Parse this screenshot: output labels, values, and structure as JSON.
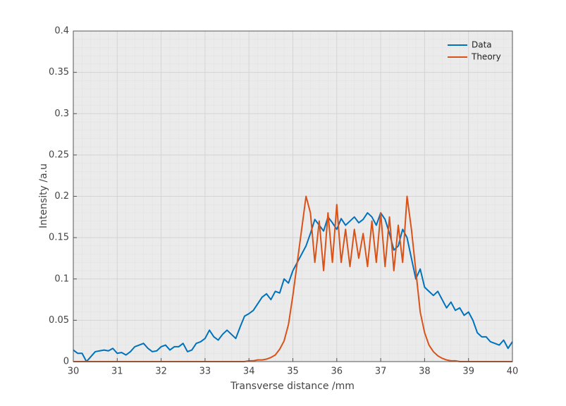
{
  "chart_data": {
    "type": "line",
    "xlabel": "Transverse distance /mm",
    "ylabel": "Intensity /a.u",
    "x": [
      30.0,
      30.1,
      30.2,
      30.3,
      30.4,
      30.5,
      30.6,
      30.7,
      30.8,
      30.9,
      31.0,
      31.1,
      31.2,
      31.3,
      31.4,
      31.5,
      31.6,
      31.7,
      31.8,
      31.9,
      32.0,
      32.1,
      32.2,
      32.3,
      32.4,
      32.5,
      32.6,
      32.7,
      32.8,
      32.9,
      33.0,
      33.1,
      33.2,
      33.3,
      33.4,
      33.5,
      33.6,
      33.7,
      33.8,
      33.9,
      34.0,
      34.1,
      34.2,
      34.3,
      34.4,
      34.5,
      34.6,
      34.7,
      34.8,
      34.9,
      35.0,
      35.1,
      35.2,
      35.3,
      35.4,
      35.5,
      35.6,
      35.7,
      35.8,
      35.9,
      36.0,
      36.1,
      36.2,
      36.3,
      36.4,
      36.5,
      36.6,
      36.7,
      36.8,
      36.9,
      37.0,
      37.1,
      37.2,
      37.3,
      37.4,
      37.5,
      37.6,
      37.7,
      37.8,
      37.9,
      38.0,
      38.1,
      38.2,
      38.3,
      38.4,
      38.5,
      38.6,
      38.7,
      38.8,
      38.9,
      39.0,
      39.1,
      39.2,
      39.3,
      39.4,
      39.5,
      39.6,
      39.7,
      39.8,
      39.9,
      40.0
    ],
    "series": [
      {
        "name": "Data",
        "color": "#0072bd",
        "values": [
          0.014,
          0.01,
          0.01,
          0.0,
          0.006,
          0.012,
          0.013,
          0.014,
          0.013,
          0.016,
          0.01,
          0.011,
          0.008,
          0.012,
          0.018,
          0.02,
          0.022,
          0.016,
          0.012,
          0.013,
          0.018,
          0.02,
          0.014,
          0.018,
          0.018,
          0.022,
          0.012,
          0.014,
          0.022,
          0.024,
          0.028,
          0.038,
          0.03,
          0.026,
          0.033,
          0.038,
          0.033,
          0.028,
          0.042,
          0.055,
          0.058,
          0.062,
          0.07,
          0.078,
          0.082,
          0.075,
          0.085,
          0.083,
          0.1,
          0.095,
          0.11,
          0.12,
          0.13,
          0.14,
          0.155,
          0.172,
          0.165,
          0.158,
          0.175,
          0.168,
          0.16,
          0.173,
          0.165,
          0.17,
          0.175,
          0.168,
          0.172,
          0.18,
          0.175,
          0.165,
          0.18,
          0.172,
          0.155,
          0.135,
          0.14,
          0.16,
          0.15,
          0.125,
          0.1,
          0.112,
          0.09,
          0.085,
          0.08,
          0.085,
          0.075,
          0.065,
          0.072,
          0.062,
          0.065,
          0.056,
          0.06,
          0.05,
          0.035,
          0.03,
          0.03,
          0.024,
          0.022,
          0.02,
          0.026,
          0.016,
          0.024
        ]
      },
      {
        "name": "Theory",
        "color": "#d95319",
        "values": [
          0,
          0,
          0,
          0,
          0,
          0,
          0,
          0,
          0,
          0,
          0,
          0,
          0,
          0,
          0,
          0,
          0,
          0,
          0,
          0,
          0,
          0,
          0,
          0,
          0,
          0,
          0,
          0,
          0,
          0,
          0,
          0,
          0,
          0,
          0,
          0,
          0,
          0,
          0,
          0,
          0.001,
          0.001,
          0.002,
          0.002,
          0.003,
          0.005,
          0.008,
          0.015,
          0.025,
          0.045,
          0.08,
          0.12,
          0.16,
          0.2,
          0.18,
          0.12,
          0.17,
          0.11,
          0.18,
          0.12,
          0.19,
          0.12,
          0.16,
          0.115,
          0.16,
          0.125,
          0.155,
          0.115,
          0.17,
          0.12,
          0.18,
          0.115,
          0.175,
          0.11,
          0.165,
          0.12,
          0.2,
          0.16,
          0.11,
          0.06,
          0.035,
          0.02,
          0.012,
          0.007,
          0.004,
          0.002,
          0.001,
          0.001,
          0,
          0,
          0,
          0,
          0,
          0,
          0,
          0,
          0,
          0,
          0,
          0,
          0
        ]
      }
    ],
    "xlim": [
      30,
      40
    ],
    "xticks": [
      30,
      31,
      32,
      33,
      34,
      35,
      36,
      37,
      38,
      39,
      40
    ],
    "ylim": [
      0,
      0.4
    ],
    "yticks": [
      0,
      0.05,
      0.1,
      0.15,
      0.2,
      0.25,
      0.3,
      0.35,
      0.4
    ],
    "grid": true,
    "minor_grid": true,
    "legend": "upper right"
  }
}
